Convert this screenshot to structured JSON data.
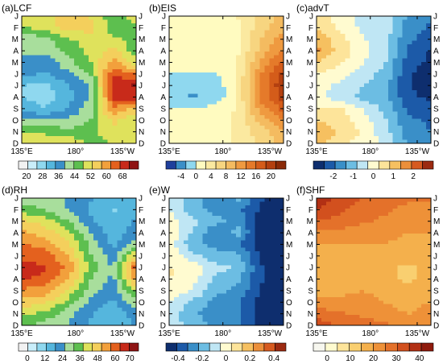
{
  "chart_data": [
    {
      "type": "heatmap",
      "title": "(a)LCF",
      "x_tick_labels": [
        "135°E",
        "180°",
        "135°W"
      ],
      "y_tick_labels": [
        "J",
        "F",
        "M",
        "A",
        "M",
        "J",
        "J",
        "A",
        "S",
        "O",
        "N",
        "D"
      ],
      "colorbar_ticks": [
        "20",
        "28",
        "36",
        "44",
        "52",
        "60",
        "68"
      ],
      "colorbar_range": [
        16,
        76
      ],
      "colors": [
        "#f2f2f2",
        "#c9eefa",
        "#8fd8ef",
        "#55b6dd",
        "#3a8fc8",
        "#a8de9c",
        "#5dbf4f",
        "#dfe25c",
        "#f4cf5c",
        "#f2a03c",
        "#e4611e",
        "#c82a1a",
        "#8f1414"
      ],
      "x": [
        135,
        155,
        175,
        195,
        215,
        235
      ],
      "y": [
        "J",
        "F",
        "M",
        "A",
        "M",
        "J",
        "J",
        "A",
        "S",
        "O",
        "N",
        "D"
      ],
      "values": [
        [
          50,
          52,
          55,
          52,
          46,
          50
        ],
        [
          48,
          50,
          55,
          55,
          45,
          48
        ],
        [
          40,
          42,
          48,
          50,
          50,
          45
        ],
        [
          42,
          40,
          45,
          50,
          55,
          45
        ],
        [
          36,
          36,
          42,
          48,
          60,
          50
        ],
        [
          36,
          34,
          38,
          44,
          66,
          62
        ],
        [
          30,
          28,
          34,
          40,
          70,
          72
        ],
        [
          30,
          28,
          32,
          40,
          68,
          70
        ],
        [
          32,
          30,
          34,
          42,
          62,
          56
        ],
        [
          40,
          40,
          40,
          44,
          54,
          48
        ],
        [
          48,
          48,
          45,
          46,
          52,
          48
        ],
        [
          50,
          50,
          52,
          48,
          48,
          50
        ]
      ]
    },
    {
      "type": "heatmap",
      "title": "(b)EIS",
      "x_tick_labels": [
        "135°E",
        "180°",
        "135°W"
      ],
      "y_tick_labels": [
        "J",
        "F",
        "M",
        "A",
        "M",
        "J",
        "J",
        "A",
        "S",
        "O",
        "N",
        "D"
      ],
      "colorbar_ticks": [
        "-4",
        "0",
        "4",
        "8",
        "12",
        "16",
        "20"
      ],
      "colorbar_range": [
        -8,
        24
      ],
      "colors": [
        "#1f3f9c",
        "#3a8fc8",
        "#8fd8ef",
        "#fffbc0",
        "#fbe9a0",
        "#f7d580",
        "#f4bb60",
        "#ef9a40",
        "#e57a2a",
        "#d45c1a",
        "#b34010",
        "#8a2a08"
      ],
      "x": [
        135,
        155,
        175,
        195,
        215,
        235
      ],
      "y": [
        "J",
        "F",
        "M",
        "A",
        "M",
        "J",
        "J",
        "A",
        "S",
        "O",
        "N",
        "D"
      ],
      "values": [
        [
          1,
          1,
          2,
          3,
          6,
          9
        ],
        [
          1,
          1,
          1,
          2,
          7,
          10
        ],
        [
          1,
          1,
          1,
          2,
          8,
          12
        ],
        [
          2,
          1,
          1,
          2,
          9,
          14
        ],
        [
          1,
          1,
          1,
          3,
          11,
          17
        ],
        [
          0,
          0,
          0,
          3,
          13,
          20
        ],
        [
          -2,
          -2,
          -2,
          3,
          14,
          21
        ],
        [
          -2,
          -3,
          -2,
          3,
          14,
          20
        ],
        [
          0,
          0,
          1,
          3,
          12,
          17
        ],
        [
          2,
          2,
          2,
          3,
          9,
          13
        ],
        [
          2,
          2,
          2,
          3,
          7,
          10
        ],
        [
          2,
          2,
          2,
          3,
          6,
          9
        ]
      ]
    },
    {
      "type": "heatmap",
      "title": "(c)advT",
      "x_tick_labels": [
        "135°E",
        "180°",
        "135°W"
      ],
      "y_tick_labels": [
        "J",
        "F",
        "M",
        "A",
        "M",
        "J",
        "J",
        "A",
        "S",
        "O",
        "N",
        "D"
      ],
      "colorbar_ticks": [
        "-2",
        "-1",
        "0",
        "1",
        "2"
      ],
      "colorbar_range": [
        -3,
        3
      ],
      "colors": [
        "#0e2e6e",
        "#1c5aa8",
        "#3a8fc8",
        "#6cbde3",
        "#bfe6f4",
        "#fffbd0",
        "#fde49a",
        "#f6c060",
        "#ec8f3a",
        "#d75a1f",
        "#9c2a10"
      ],
      "x": [
        135,
        155,
        175,
        195,
        215,
        235
      ],
      "y": [
        "J",
        "F",
        "M",
        "A",
        "M",
        "J",
        "J",
        "A",
        "S",
        "O",
        "N",
        "D"
      ],
      "values": [
        [
          0.5,
          0.0,
          -0.5,
          -0.3,
          -1.5,
          -1.8
        ],
        [
          0.8,
          0.2,
          -0.4,
          -0.5,
          -1.6,
          -2.0
        ],
        [
          1.2,
          0.5,
          -0.2,
          -0.6,
          -1.8,
          -2.2
        ],
        [
          1.5,
          0.6,
          0.0,
          -0.7,
          -2.0,
          -2.5
        ],
        [
          0.8,
          0.4,
          -0.2,
          -0.8,
          -2.2,
          -2.6
        ],
        [
          0.2,
          0.0,
          -0.6,
          -1.0,
          -2.4,
          -2.7
        ],
        [
          0.0,
          -0.4,
          -0.8,
          -1.1,
          -2.4,
          -2.8
        ],
        [
          -0.2,
          -0.5,
          -1.0,
          -1.2,
          -2.3,
          -2.6
        ],
        [
          0.3,
          0.4,
          -0.3,
          -1.0,
          -2.0,
          -2.2
        ],
        [
          0.8,
          0.6,
          0.0,
          -0.8,
          -1.8,
          -2.0
        ],
        [
          1.2,
          0.8,
          0.2,
          -0.6,
          -1.6,
          -1.9
        ],
        [
          1.0,
          0.4,
          0.0,
          -0.4,
          -1.5,
          -1.8
        ]
      ]
    },
    {
      "type": "heatmap",
      "title": "(d)RH",
      "x_tick_labels": [
        "135°E",
        "180°",
        "135°W"
      ],
      "y_tick_labels": [
        "J",
        "F",
        "M",
        "A",
        "M",
        "J",
        "J",
        "A",
        "S",
        "O",
        "N",
        "D"
      ],
      "colorbar_ticks": [
        "0",
        "12",
        "24",
        "36",
        "48",
        "60",
        "70"
      ],
      "colorbar_range": [
        -6,
        76
      ],
      "colors": [
        "#f2f2f2",
        "#c9eefa",
        "#8fd8ef",
        "#55b6dd",
        "#3a8fc8",
        "#a8de9c",
        "#5dbf4f",
        "#dfe25c",
        "#f4cf5c",
        "#f2a03c",
        "#e4611e",
        "#c82a1a",
        "#8f1414"
      ],
      "x": [
        135,
        155,
        175,
        195,
        215,
        235
      ],
      "y": [
        "J",
        "F",
        "M",
        "A",
        "M",
        "J",
        "J",
        "A",
        "S",
        "O",
        "N",
        "D"
      ],
      "values": [
        [
          25,
          30,
          25,
          20,
          15,
          20
        ],
        [
          35,
          32,
          25,
          18,
          12,
          18
        ],
        [
          45,
          42,
          32,
          20,
          15,
          20
        ],
        [
          52,
          48,
          40,
          25,
          15,
          22
        ],
        [
          58,
          55,
          46,
          30,
          18,
          28
        ],
        [
          62,
          60,
          52,
          32,
          22,
          45
        ],
        [
          66,
          64,
          56,
          36,
          25,
          62
        ],
        [
          64,
          62,
          52,
          32,
          24,
          55
        ],
        [
          56,
          54,
          44,
          28,
          22,
          40
        ],
        [
          48,
          46,
          36,
          24,
          18,
          30
        ],
        [
          40,
          36,
          28,
          20,
          15,
          22
        ],
        [
          32,
          30,
          25,
          18,
          14,
          20
        ]
      ]
    },
    {
      "type": "heatmap",
      "title": "(e)W",
      "x_tick_labels": [
        "135°E",
        "180°",
        "135°W"
      ],
      "y_tick_labels": [
        "J",
        "F",
        "M",
        "A",
        "M",
        "J",
        "J",
        "A",
        "S",
        "O",
        "N",
        "D"
      ],
      "colorbar_ticks": [
        "-0.4",
        "-0.2",
        "0",
        "0.2",
        "0.4"
      ],
      "colorbar_range": [
        -0.5,
        0.5
      ],
      "colors": [
        "#0e2e6e",
        "#1c5aa8",
        "#3a8fc8",
        "#6cbde3",
        "#bfe6f4",
        "#fffbd0",
        "#fde49a",
        "#f6c060",
        "#ec8f3a",
        "#d75a1f",
        "#9c2a10"
      ],
      "x": [
        135,
        155,
        175,
        195,
        215,
        235
      ],
      "y": [
        "J",
        "F",
        "M",
        "A",
        "M",
        "J",
        "J",
        "A",
        "S",
        "O",
        "N",
        "D"
      ],
      "values": [
        [
          -0.1,
          -0.15,
          -0.3,
          -0.2,
          -0.4,
          -0.45
        ],
        [
          -0.05,
          -0.2,
          -0.25,
          -0.3,
          -0.42,
          -0.45
        ],
        [
          0.0,
          -0.1,
          -0.2,
          -0.25,
          -0.45,
          -0.48
        ],
        [
          0.05,
          -0.15,
          -0.3,
          -0.2,
          -0.45,
          -0.48
        ],
        [
          0.0,
          -0.2,
          -0.25,
          -0.3,
          -0.45,
          -0.48
        ],
        [
          0.02,
          -0.1,
          -0.2,
          -0.2,
          -0.42,
          -0.46
        ],
        [
          0.05,
          0.02,
          -0.1,
          -0.15,
          -0.4,
          -0.45
        ],
        [
          0.05,
          0.0,
          -0.15,
          -0.2,
          -0.4,
          -0.45
        ],
        [
          0.0,
          -0.05,
          -0.2,
          -0.25,
          -0.42,
          -0.46
        ],
        [
          -0.05,
          -0.15,
          -0.25,
          -0.3,
          -0.44,
          -0.48
        ],
        [
          -0.1,
          -0.2,
          -0.3,
          -0.3,
          -0.45,
          -0.48
        ],
        [
          -0.1,
          -0.15,
          -0.25,
          -0.3,
          -0.44,
          -0.46
        ]
      ]
    },
    {
      "type": "heatmap",
      "title": "(f)SHF",
      "x_tick_labels": [
        "135°E",
        "180°",
        "135°W"
      ],
      "y_tick_labels": [
        "J",
        "F",
        "M",
        "A",
        "M",
        "J",
        "J",
        "A",
        "S",
        "O",
        "N",
        "D"
      ],
      "colorbar_ticks": [
        "0",
        "10",
        "20",
        "30",
        "40"
      ],
      "colorbar_range": [
        -6,
        46
      ],
      "colors": [
        "#f7f7ef",
        "#fffbd0",
        "#fde49a",
        "#f9cf70",
        "#f4b04c",
        "#ee9138",
        "#e4712a",
        "#d2501e",
        "#b23014",
        "#8f1a0c"
      ],
      "x": [
        135,
        155,
        175,
        195,
        215,
        235
      ],
      "y": [
        "J",
        "F",
        "M",
        "A",
        "M",
        "J",
        "J",
        "A",
        "S",
        "O",
        "N",
        "D"
      ],
      "values": [
        [
          38,
          34,
          30,
          28,
          26,
          26
        ],
        [
          36,
          32,
          28,
          26,
          24,
          24
        ],
        [
          30,
          28,
          26,
          24,
          22,
          22
        ],
        [
          24,
          24,
          22,
          22,
          20,
          20
        ],
        [
          20,
          20,
          20,
          20,
          18,
          20
        ],
        [
          18,
          18,
          18,
          18,
          16,
          18
        ],
        [
          16,
          16,
          16,
          16,
          14,
          16
        ],
        [
          16,
          16,
          18,
          16,
          14,
          16
        ],
        [
          18,
          18,
          20,
          18,
          16,
          18
        ],
        [
          22,
          22,
          22,
          20,
          18,
          20
        ],
        [
          28,
          26,
          24,
          22,
          20,
          22
        ],
        [
          34,
          30,
          28,
          26,
          24,
          24
        ]
      ]
    }
  ]
}
